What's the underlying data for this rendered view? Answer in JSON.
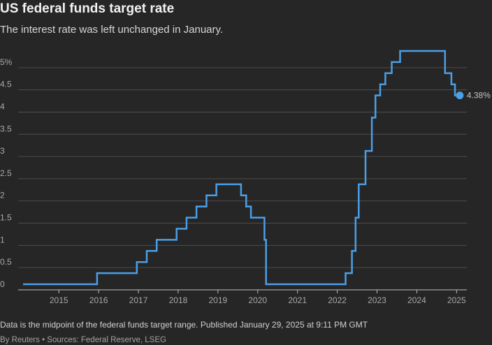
{
  "header": {
    "title": "US federal funds target rate",
    "subtitle": "The interest rate was left unchanged in January."
  },
  "footer": {
    "note": "Data is the midpoint of the federal funds target range. Published January 29, 2025 at 9:11 PM GMT",
    "credit": "By Reuters • Sources: Federal Reserve, LSEG"
  },
  "colors": {
    "line": "#4a9fe6",
    "grid": "#4d4d4d",
    "background": "#262626"
  },
  "chart_data": {
    "type": "line",
    "title": "US federal funds target rate",
    "subtitle": "The interest rate was left unchanged in January.",
    "xlabel": "",
    "ylabel": "",
    "xlim": [
      2014.1,
      2025.1
    ],
    "ylim": [
      0,
      5.5
    ],
    "grid": true,
    "step": true,
    "yticks": [
      {
        "value": 0,
        "label": "0"
      },
      {
        "value": 0.5,
        "label": "0.5"
      },
      {
        "value": 1,
        "label": "1"
      },
      {
        "value": 1.5,
        "label": "1.5"
      },
      {
        "value": 2,
        "label": "2"
      },
      {
        "value": 2.5,
        "label": "2.5"
      },
      {
        "value": 3,
        "label": "3"
      },
      {
        "value": 3.5,
        "label": "3.5"
      },
      {
        "value": 4,
        "label": "4"
      },
      {
        "value": 4.5,
        "label": "4.5"
      },
      {
        "value": 5,
        "label": "5%"
      }
    ],
    "xticks": [
      {
        "value": 2015,
        "label": "2015"
      },
      {
        "value": 2016,
        "label": "2016"
      },
      {
        "value": 2017,
        "label": "2017"
      },
      {
        "value": 2018,
        "label": "2018"
      },
      {
        "value": 2019,
        "label": "2019"
      },
      {
        "value": 2020,
        "label": "2020"
      },
      {
        "value": 2021,
        "label": "2021"
      },
      {
        "value": 2022,
        "label": "2022"
      },
      {
        "value": 2023,
        "label": "2023"
      },
      {
        "value": 2024,
        "label": "2024"
      },
      {
        "value": 2025,
        "label": "2025"
      }
    ],
    "series": [
      {
        "points": [
          [
            2014.1,
            0.125
          ],
          [
            2015.96,
            0.375
          ],
          [
            2016.96,
            0.625
          ],
          [
            2017.21,
            0.875
          ],
          [
            2017.46,
            1.125
          ],
          [
            2017.96,
            1.375
          ],
          [
            2018.21,
            1.625
          ],
          [
            2018.46,
            1.875
          ],
          [
            2018.71,
            2.125
          ],
          [
            2018.96,
            2.375
          ],
          [
            2019.58,
            2.125
          ],
          [
            2019.71,
            1.875
          ],
          [
            2019.83,
            1.625
          ],
          [
            2020.17,
            1.125
          ],
          [
            2020.21,
            0.125
          ],
          [
            2022.21,
            0.375
          ],
          [
            2022.37,
            0.875
          ],
          [
            2022.46,
            1.625
          ],
          [
            2022.54,
            2.375
          ],
          [
            2022.71,
            3.125
          ],
          [
            2022.87,
            3.875
          ],
          [
            2022.96,
            4.375
          ],
          [
            2023.08,
            4.625
          ],
          [
            2023.21,
            4.875
          ],
          [
            2023.37,
            5.125
          ],
          [
            2023.58,
            5.375
          ],
          [
            2024.71,
            4.875
          ],
          [
            2024.87,
            4.625
          ],
          [
            2024.96,
            4.375
          ],
          [
            2025.08,
            4.375
          ]
        ]
      }
    ],
    "end_label": "4.38%"
  }
}
